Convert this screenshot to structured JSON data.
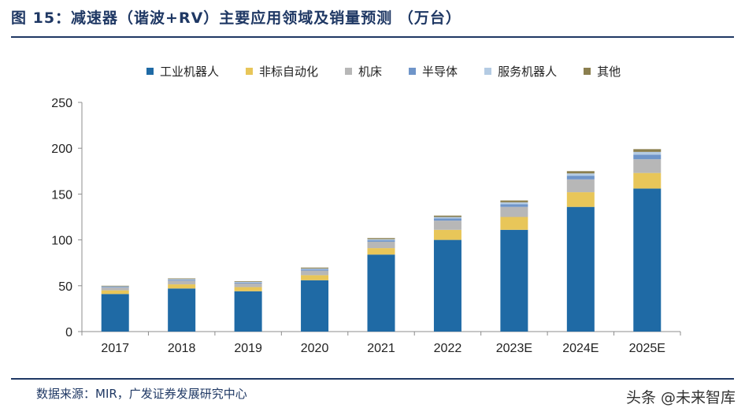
{
  "title": "图 15：减速器（谐波+RV）主要应用领域及销量预测 （万台）",
  "source": "数据来源：MIR，广发证券发展研究中心",
  "watermark": "头条 @未来智库",
  "chart_data": {
    "type": "bar",
    "stacked": true,
    "title": "图 15：减速器（谐波+RV）主要应用领域及销量预测 （万台）",
    "xlabel": "",
    "ylabel": "",
    "ylim": [
      0,
      250
    ],
    "yticks": [
      0,
      50,
      100,
      150,
      200,
      250
    ],
    "legend_position": "top",
    "categories": [
      "2017",
      "2018",
      "2019",
      "2020",
      "2021",
      "2022",
      "2023E",
      "2024E",
      "2025E"
    ],
    "series": [
      {
        "name": "工业机器人",
        "color": "#1f6aa5",
        "values": [
          41,
          47,
          44,
          56,
          84,
          100,
          111,
          136,
          156
        ]
      },
      {
        "name": "非标自动化",
        "color": "#e8c659",
        "values": [
          4,
          4.5,
          4.5,
          5.5,
          7,
          11,
          14,
          16,
          17
        ]
      },
      {
        "name": "机床",
        "color": "#b7b7b7",
        "values": [
          3,
          4,
          4,
          5,
          7,
          10,
          11,
          14,
          15
        ]
      },
      {
        "name": "半导体",
        "color": "#6f95c9",
        "values": [
          0.8,
          1,
          1,
          1.3,
          1.6,
          2.5,
          3,
          4,
          5
        ]
      },
      {
        "name": "服务机器人",
        "color": "#b4cbe3",
        "values": [
          0.6,
          0.8,
          0.8,
          1,
          1.2,
          1.5,
          2,
          2.5,
          3
        ]
      },
      {
        "name": "其他",
        "color": "#8b7f4f",
        "values": [
          0.6,
          0.7,
          0.7,
          1,
          1.2,
          1.5,
          2,
          2.5,
          3
        ]
      }
    ]
  }
}
